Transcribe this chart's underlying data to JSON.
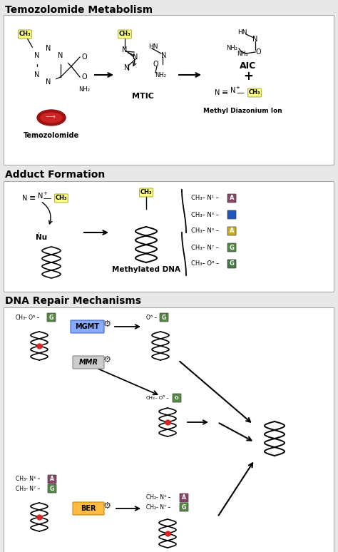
{
  "title1": "Temozolomide Metabolism",
  "title2": "Adduct Formation",
  "title3": "DNA Repair Mechanisms",
  "bg_color": "#e8e8e8",
  "box_facecolor": "#ffffff",
  "yellow": "#ffff88",
  "red_pill": "#cc1111",
  "adduct_rows": [
    {
      "label": "CH₃– N¹ –",
      "letter": "A",
      "color": "#884466"
    },
    {
      "label": "CH₃– N³ –",
      "letter": "",
      "color": "#2255bb"
    },
    {
      "label": "CH₃– N³ –",
      "letter": "A",
      "color": "#ccaa22"
    },
    {
      "label": "CH₃– N⁷ –",
      "letter": "G",
      "color": "#558844"
    },
    {
      "label": "CH₃– O⁶ –",
      "letter": "G",
      "color": "#447744"
    }
  ],
  "mgmt_color": "#88aaff",
  "mgmt_edge": "#4466cc",
  "mmr_color": "#cccccc",
  "mmr_edge": "#888888",
  "ber_color": "#ffbb44",
  "ber_edge": "#cc8800",
  "g_color": "#558844",
  "a_color": "#884466",
  "orange_color": "#ffaa33"
}
